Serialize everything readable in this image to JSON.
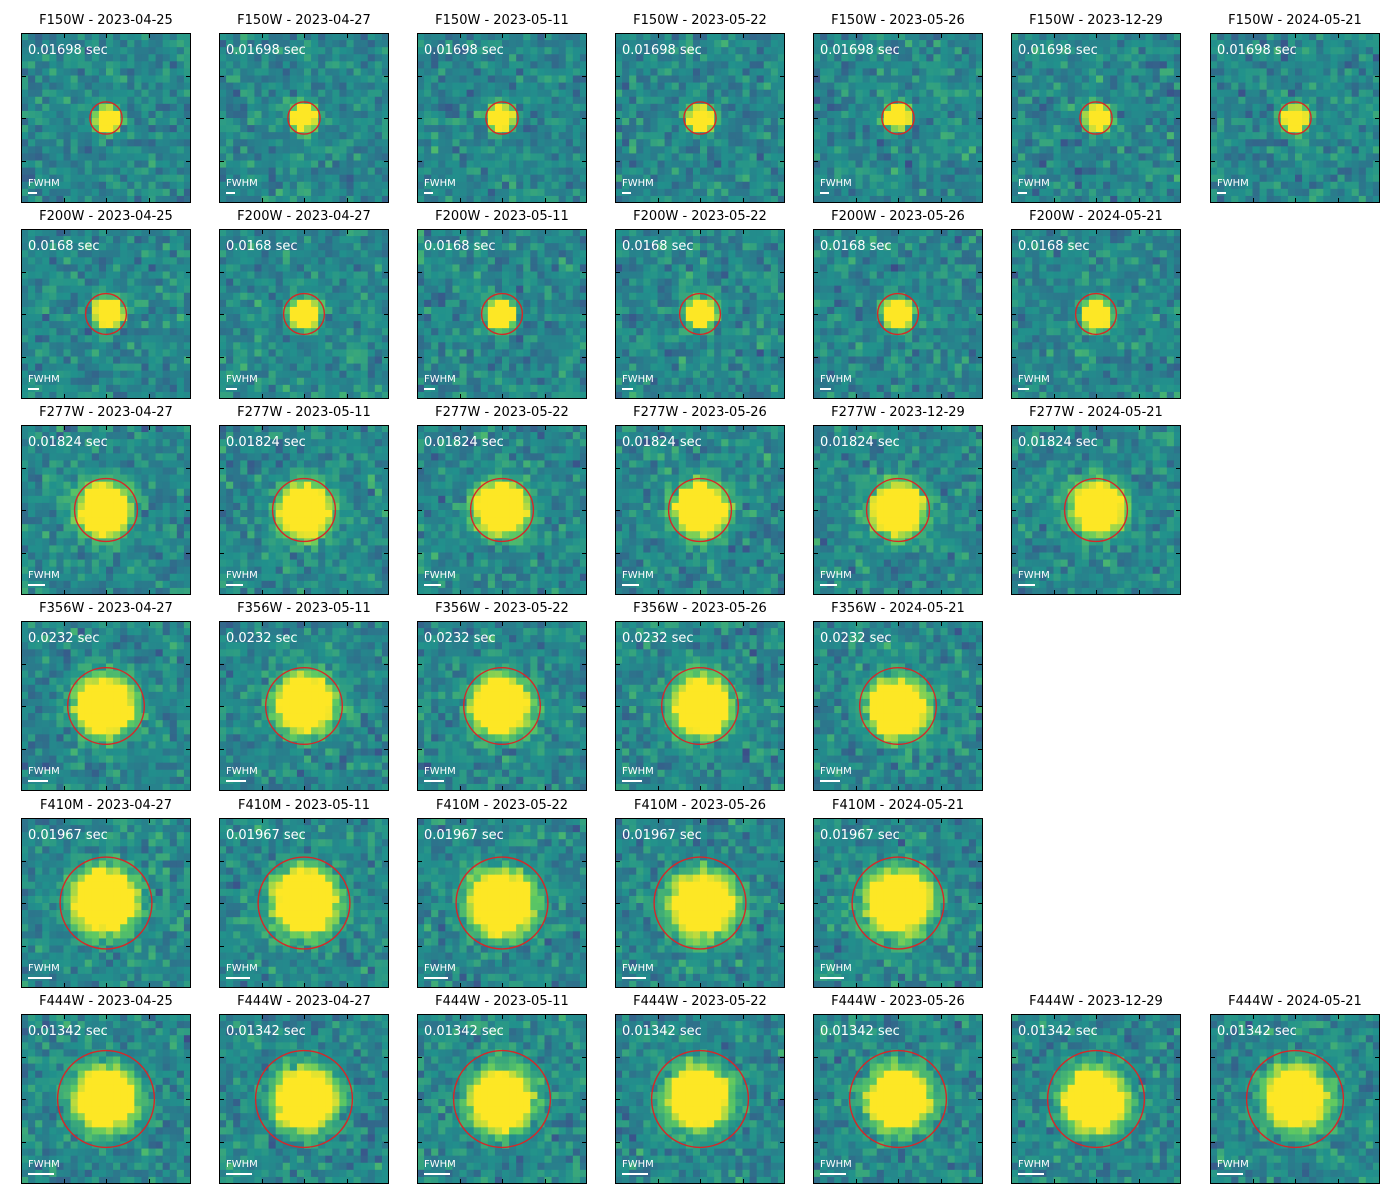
{
  "colormap": [
    "#440154",
    "#3b528b",
    "#21918c",
    "#5ec962",
    "#fde725"
  ],
  "aperture_color": "#d62728",
  "fwhm_text": "FWHM",
  "rows": [
    {
      "filter": "F150W",
      "exposure": "0.01698 sec",
      "aperture_radius_frac": 0.095,
      "fwhm_bar_frac": 0.055,
      "source_size_frac": 0.045,
      "panels": [
        {
          "title": "F150W - 2023-04-25"
        },
        {
          "title": "F150W - 2023-04-27"
        },
        {
          "title": "F150W - 2023-05-11"
        },
        {
          "title": "F150W - 2023-05-22"
        },
        {
          "title": "F150W - 2023-05-26"
        },
        {
          "title": "F150W - 2023-12-29"
        },
        {
          "title": "F150W - 2024-05-21"
        }
      ]
    },
    {
      "filter": "F200W",
      "exposure": "0.0168 sec",
      "aperture_radius_frac": 0.12,
      "fwhm_bar_frac": 0.065,
      "source_size_frac": 0.05,
      "panels": [
        {
          "title": "F200W - 2023-04-25"
        },
        {
          "title": "F200W - 2023-04-27"
        },
        {
          "title": "F200W - 2023-05-11"
        },
        {
          "title": "F200W - 2023-05-22"
        },
        {
          "title": "F200W - 2023-05-26"
        },
        {
          "title": "F200W - 2024-05-21"
        }
      ]
    },
    {
      "filter": "F277W",
      "exposure": "0.01824 sec",
      "aperture_radius_frac": 0.185,
      "fwhm_bar_frac": 0.1,
      "source_size_frac": 0.09,
      "panels": [
        {
          "title": "F277W - 2023-04-27"
        },
        {
          "title": "F277W - 2023-05-11"
        },
        {
          "title": "F277W - 2023-05-22"
        },
        {
          "title": "F277W - 2023-05-26"
        },
        {
          "title": "F277W - 2023-12-29"
        },
        {
          "title": "F277W - 2024-05-21"
        }
      ]
    },
    {
      "filter": "F356W",
      "exposure": "0.0232 sec",
      "aperture_radius_frac": 0.225,
      "fwhm_bar_frac": 0.12,
      "source_size_frac": 0.1,
      "panels": [
        {
          "title": "F356W - 2023-04-27"
        },
        {
          "title": "F356W - 2023-05-11"
        },
        {
          "title": "F356W - 2023-05-22"
        },
        {
          "title": "F356W - 2023-05-26"
        },
        {
          "title": "F356W - 2024-05-21"
        }
      ]
    },
    {
      "filter": "F410M",
      "exposure": "0.01967 sec",
      "aperture_radius_frac": 0.27,
      "fwhm_bar_frac": 0.14,
      "source_size_frac": 0.11,
      "panels": [
        {
          "title": "F410M - 2023-04-27"
        },
        {
          "title": "F410M - 2023-05-11"
        },
        {
          "title": "F410M - 2023-05-22"
        },
        {
          "title": "F410M - 2023-05-26"
        },
        {
          "title": "F410M - 2024-05-21"
        }
      ]
    },
    {
      "filter": "F444W",
      "exposure": "0.01342 sec",
      "aperture_radius_frac": 0.285,
      "fwhm_bar_frac": 0.15,
      "source_size_frac": 0.105,
      "panels": [
        {
          "title": "F444W - 2023-04-25"
        },
        {
          "title": "F444W - 2023-04-27"
        },
        {
          "title": "F444W - 2023-05-11"
        },
        {
          "title": "F444W - 2023-05-22"
        },
        {
          "title": "F444W - 2023-05-26"
        },
        {
          "title": "F444W - 2023-12-29"
        },
        {
          "title": "F444W - 2024-05-21"
        }
      ]
    }
  ]
}
